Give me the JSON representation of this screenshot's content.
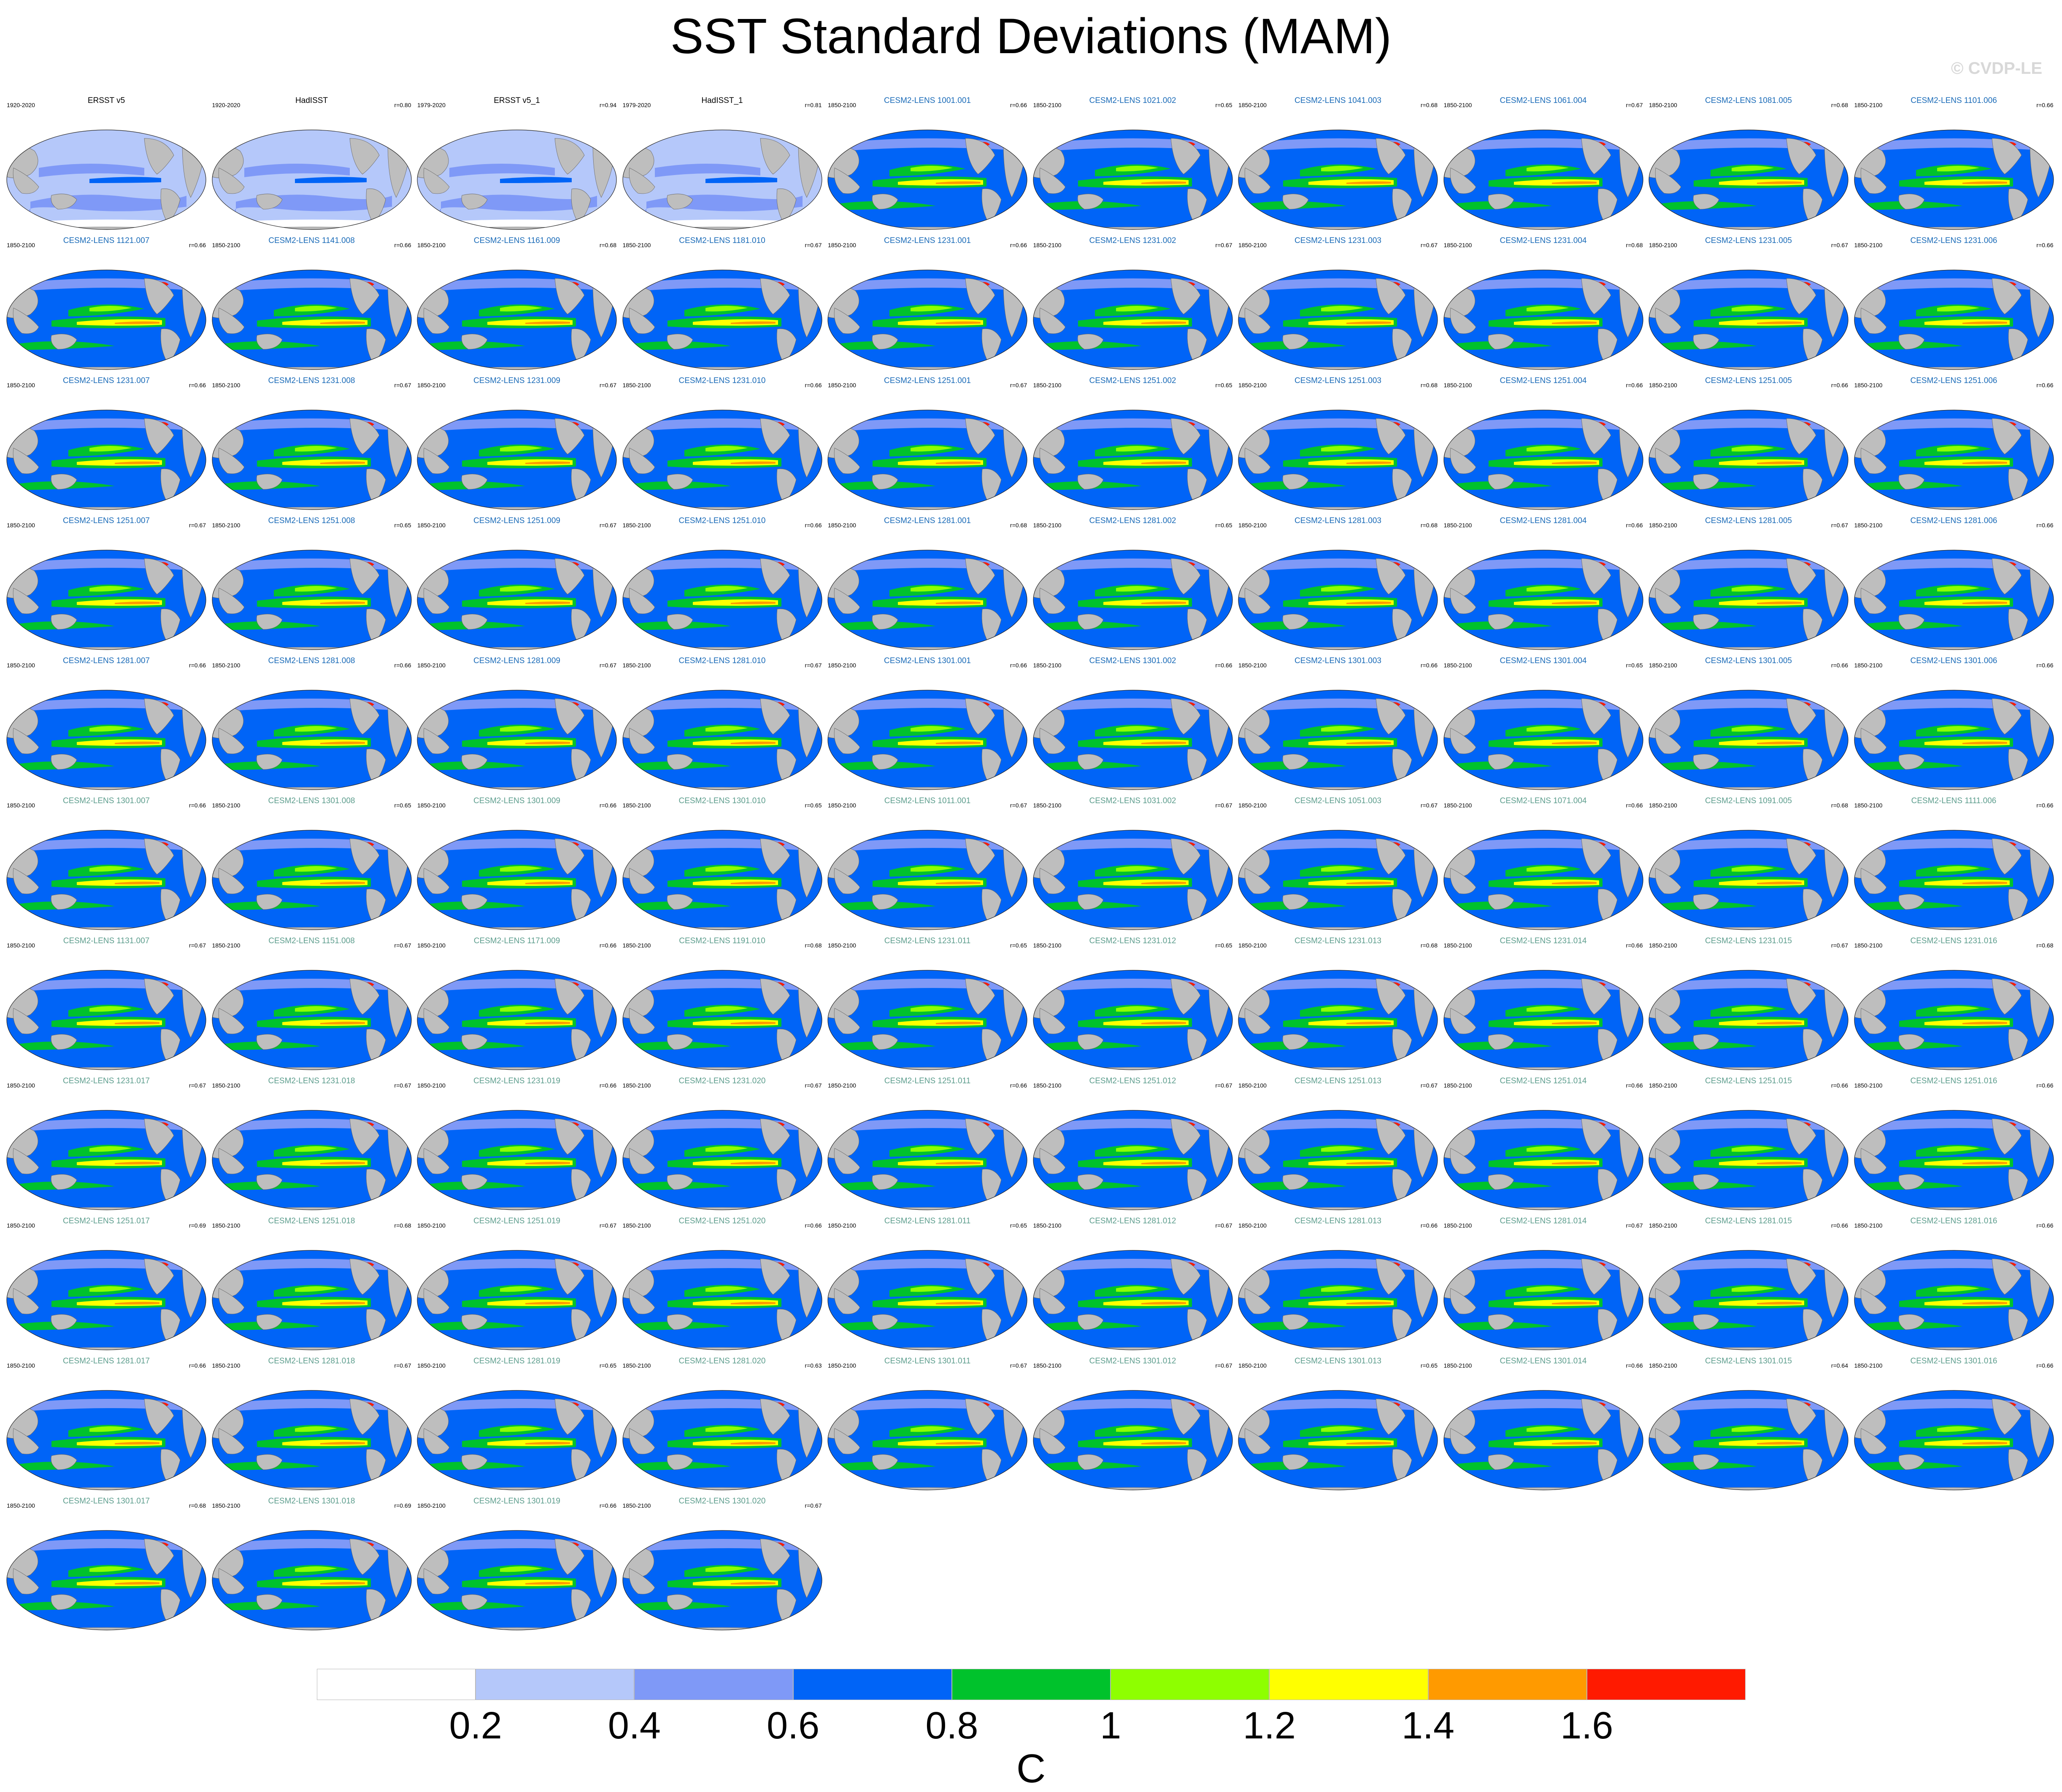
{
  "title": "SST Standard Deviations (MAM)",
  "copyright": "© CVDP-LE",
  "colors": {
    "cmip_member_title": "#1a6bb8",
    "smbb_member_title": "#5e9e8e",
    "obs_title": "#000000",
    "land": "#bebebe"
  },
  "chart_data": {
    "type": "heatmap",
    "variable": "SST standard deviation",
    "season": "MAM",
    "units": "C",
    "contour_levels": [
      0.2,
      0.4,
      0.6,
      0.8,
      1,
      1.2,
      1.4,
      1.6
    ],
    "colorbar_colors": [
      "#ffffff",
      "#b5c8fa",
      "#7f99f7",
      "#0064f7",
      "#00c22c",
      "#8eff00",
      "#ffff00",
      "#ff9a00",
      "#ff1a00"
    ],
    "colorbar_labels": [
      "0.2",
      "0.4",
      "0.6",
      "0.8",
      "1",
      "1.2",
      "1.4",
      "1.6"
    ],
    "units_label": "C",
    "observations": [
      {
        "name": "ERSST v5",
        "years": "1920-2020",
        "r": ""
      },
      {
        "name": "HadISST",
        "years": "1920-2020",
        "r": "r=0.80"
      },
      {
        "name": "ERSST v5_1",
        "years": "1979-2020",
        "r": "r=0.94"
      },
      {
        "name": "HadISST_1",
        "years": "1979-2020",
        "r": "r=0.81"
      }
    ],
    "members": [
      {
        "name": "CESM2-LENS 1001.001",
        "years": "1850-2100",
        "r": "r=0.66"
      },
      {
        "name": "CESM2-LENS 1021.002",
        "years": "1850-2100",
        "r": "r=0.65"
      },
      {
        "name": "CESM2-LENS 1041.003",
        "years": "1850-2100",
        "r": "r=0.68"
      },
      {
        "name": "CESM2-LENS 1061.004",
        "years": "1850-2100",
        "r": "r=0.67"
      },
      {
        "name": "CESM2-LENS 1081.005",
        "years": "1850-2100",
        "r": "r=0.68"
      },
      {
        "name": "CESM2-LENS 1101.006",
        "years": "1850-2100",
        "r": "r=0.66"
      },
      {
        "name": "CESM2-LENS 1121.007",
        "years": "1850-2100",
        "r": "r=0.66"
      },
      {
        "name": "CESM2-LENS 1141.008",
        "years": "1850-2100",
        "r": "r=0.66"
      },
      {
        "name": "CESM2-LENS 1161.009",
        "years": "1850-2100",
        "r": "r=0.68"
      },
      {
        "name": "CESM2-LENS 1181.010",
        "years": "1850-2100",
        "r": "r=0.67"
      },
      {
        "name": "CESM2-LENS 1231.001",
        "years": "1850-2100",
        "r": "r=0.66"
      },
      {
        "name": "CESM2-LENS 1231.002",
        "years": "1850-2100",
        "r": "r=0.67"
      },
      {
        "name": "CESM2-LENS 1231.003",
        "years": "1850-2100",
        "r": "r=0.67"
      },
      {
        "name": "CESM2-LENS 1231.004",
        "years": "1850-2100",
        "r": "r=0.68"
      },
      {
        "name": "CESM2-LENS 1231.005",
        "years": "1850-2100",
        "r": "r=0.67"
      },
      {
        "name": "CESM2-LENS 1231.006",
        "years": "1850-2100",
        "r": "r=0.66"
      },
      {
        "name": "CESM2-LENS 1231.007",
        "years": "1850-2100",
        "r": "r=0.66"
      },
      {
        "name": "CESM2-LENS 1231.008",
        "years": "1850-2100",
        "r": "r=0.67"
      },
      {
        "name": "CESM2-LENS 1231.009",
        "years": "1850-2100",
        "r": "r=0.67"
      },
      {
        "name": "CESM2-LENS 1231.010",
        "years": "1850-2100",
        "r": "r=0.66"
      },
      {
        "name": "CESM2-LENS 1251.001",
        "years": "1850-2100",
        "r": "r=0.67"
      },
      {
        "name": "CESM2-LENS 1251.002",
        "years": "1850-2100",
        "r": "r=0.65"
      },
      {
        "name": "CESM2-LENS 1251.003",
        "years": "1850-2100",
        "r": "r=0.68"
      },
      {
        "name": "CESM2-LENS 1251.004",
        "years": "1850-2100",
        "r": "r=0.66"
      },
      {
        "name": "CESM2-LENS 1251.005",
        "years": "1850-2100",
        "r": "r=0.66"
      },
      {
        "name": "CESM2-LENS 1251.006",
        "years": "1850-2100",
        "r": "r=0.66"
      },
      {
        "name": "CESM2-LENS 1251.007",
        "years": "1850-2100",
        "r": "r=0.67"
      },
      {
        "name": "CESM2-LENS 1251.008",
        "years": "1850-2100",
        "r": "r=0.65"
      },
      {
        "name": "CESM2-LENS 1251.009",
        "years": "1850-2100",
        "r": "r=0.67"
      },
      {
        "name": "CESM2-LENS 1251.010",
        "years": "1850-2100",
        "r": "r=0.66"
      },
      {
        "name": "CESM2-LENS 1281.001",
        "years": "1850-2100",
        "r": "r=0.68"
      },
      {
        "name": "CESM2-LENS 1281.002",
        "years": "1850-2100",
        "r": "r=0.65"
      },
      {
        "name": "CESM2-LENS 1281.003",
        "years": "1850-2100",
        "r": "r=0.68"
      },
      {
        "name": "CESM2-LENS 1281.004",
        "years": "1850-2100",
        "r": "r=0.66"
      },
      {
        "name": "CESM2-LENS 1281.005",
        "years": "1850-2100",
        "r": "r=0.67"
      },
      {
        "name": "CESM2-LENS 1281.006",
        "years": "1850-2100",
        "r": "r=0.66"
      },
      {
        "name": "CESM2-LENS 1281.007",
        "years": "1850-2100",
        "r": "r=0.66"
      },
      {
        "name": "CESM2-LENS 1281.008",
        "years": "1850-2100",
        "r": "r=0.66"
      },
      {
        "name": "CESM2-LENS 1281.009",
        "years": "1850-2100",
        "r": "r=0.67"
      },
      {
        "name": "CESM2-LENS 1281.010",
        "years": "1850-2100",
        "r": "r=0.67"
      },
      {
        "name": "CESM2-LENS 1301.001",
        "years": "1850-2100",
        "r": "r=0.66"
      },
      {
        "name": "CESM2-LENS 1301.002",
        "years": "1850-2100",
        "r": "r=0.66"
      },
      {
        "name": "CESM2-LENS 1301.003",
        "years": "1850-2100",
        "r": "r=0.66"
      },
      {
        "name": "CESM2-LENS 1301.004",
        "years": "1850-2100",
        "r": "r=0.65"
      },
      {
        "name": "CESM2-LENS 1301.005",
        "years": "1850-2100",
        "r": "r=0.66"
      },
      {
        "name": "CESM2-LENS 1301.006",
        "years": "1850-2100",
        "r": "r=0.66"
      },
      {
        "name": "CESM2-LENS 1301.007",
        "years": "1850-2100",
        "r": "r=0.66"
      },
      {
        "name": "CESM2-LENS 1301.008",
        "years": "1850-2100",
        "r": "r=0.65"
      },
      {
        "name": "CESM2-LENS 1301.009",
        "years": "1850-2100",
        "r": "r=0.66"
      },
      {
        "name": "CESM2-LENS 1301.010",
        "years": "1850-2100",
        "r": "r=0.65"
      },
      {
        "name": "CESM2-LENS 1011.001",
        "years": "1850-2100",
        "r": "r=0.67"
      },
      {
        "name": "CESM2-LENS 1031.002",
        "years": "1850-2100",
        "r": "r=0.67"
      },
      {
        "name": "CESM2-LENS 1051.003",
        "years": "1850-2100",
        "r": "r=0.67"
      },
      {
        "name": "CESM2-LENS 1071.004",
        "years": "1850-2100",
        "r": "r=0.66"
      },
      {
        "name": "CESM2-LENS 1091.005",
        "years": "1850-2100",
        "r": "r=0.68"
      },
      {
        "name": "CESM2-LENS 1111.006",
        "years": "1850-2100",
        "r": "r=0.66"
      },
      {
        "name": "CESM2-LENS 1131.007",
        "years": "1850-2100",
        "r": "r=0.67"
      },
      {
        "name": "CESM2-LENS 1151.008",
        "years": "1850-2100",
        "r": "r=0.67"
      },
      {
        "name": "CESM2-LENS 1171.009",
        "years": "1850-2100",
        "r": "r=0.66"
      },
      {
        "name": "CESM2-LENS 1191.010",
        "years": "1850-2100",
        "r": "r=0.68"
      },
      {
        "name": "CESM2-LENS 1231.011",
        "years": "1850-2100",
        "r": "r=0.65"
      },
      {
        "name": "CESM2-LENS 1231.012",
        "years": "1850-2100",
        "r": "r=0.65"
      },
      {
        "name": "CESM2-LENS 1231.013",
        "years": "1850-2100",
        "r": "r=0.68"
      },
      {
        "name": "CESM2-LENS 1231.014",
        "years": "1850-2100",
        "r": "r=0.66"
      },
      {
        "name": "CESM2-LENS 1231.015",
        "years": "1850-2100",
        "r": "r=0.67"
      },
      {
        "name": "CESM2-LENS 1231.016",
        "years": "1850-2100",
        "r": "r=0.68"
      },
      {
        "name": "CESM2-LENS 1231.017",
        "years": "1850-2100",
        "r": "r=0.67"
      },
      {
        "name": "CESM2-LENS 1231.018",
        "years": "1850-2100",
        "r": "r=0.67"
      },
      {
        "name": "CESM2-LENS 1231.019",
        "years": "1850-2100",
        "r": "r=0.66"
      },
      {
        "name": "CESM2-LENS 1231.020",
        "years": "1850-2100",
        "r": "r=0.67"
      },
      {
        "name": "CESM2-LENS 1251.011",
        "years": "1850-2100",
        "r": "r=0.66"
      },
      {
        "name": "CESM2-LENS 1251.012",
        "years": "1850-2100",
        "r": "r=0.67"
      },
      {
        "name": "CESM2-LENS 1251.013",
        "years": "1850-2100",
        "r": "r=0.67"
      },
      {
        "name": "CESM2-LENS 1251.014",
        "years": "1850-2100",
        "r": "r=0.66"
      },
      {
        "name": "CESM2-LENS 1251.015",
        "years": "1850-2100",
        "r": "r=0.66"
      },
      {
        "name": "CESM2-LENS 1251.016",
        "years": "1850-2100",
        "r": "r=0.66"
      },
      {
        "name": "CESM2-LENS 1251.017",
        "years": "1850-2100",
        "r": "r=0.69"
      },
      {
        "name": "CESM2-LENS 1251.018",
        "years": "1850-2100",
        "r": "r=0.68"
      },
      {
        "name": "CESM2-LENS 1251.019",
        "years": "1850-2100",
        "r": "r=0.67"
      },
      {
        "name": "CESM2-LENS 1251.020",
        "years": "1850-2100",
        "r": "r=0.66"
      },
      {
        "name": "CESM2-LENS 1281.011",
        "years": "1850-2100",
        "r": "r=0.65"
      },
      {
        "name": "CESM2-LENS 1281.012",
        "years": "1850-2100",
        "r": "r=0.67"
      },
      {
        "name": "CESM2-LENS 1281.013",
        "years": "1850-2100",
        "r": "r=0.66"
      },
      {
        "name": "CESM2-LENS 1281.014",
        "years": "1850-2100",
        "r": "r=0.67"
      },
      {
        "name": "CESM2-LENS 1281.015",
        "years": "1850-2100",
        "r": "r=0.66"
      },
      {
        "name": "CESM2-LENS 1281.016",
        "years": "1850-2100",
        "r": "r=0.66"
      },
      {
        "name": "CESM2-LENS 1281.017",
        "years": "1850-2100",
        "r": "r=0.66"
      },
      {
        "name": "CESM2-LENS 1281.018",
        "years": "1850-2100",
        "r": "r=0.67"
      },
      {
        "name": "CESM2-LENS 1281.019",
        "years": "1850-2100",
        "r": "r=0.65"
      },
      {
        "name": "CESM2-LENS 1281.020",
        "years": "1850-2100",
        "r": "r=0.63"
      },
      {
        "name": "CESM2-LENS 1301.011",
        "years": "1850-2100",
        "r": "r=0.67"
      },
      {
        "name": "CESM2-LENS 1301.012",
        "years": "1850-2100",
        "r": "r=0.67"
      },
      {
        "name": "CESM2-LENS 1301.013",
        "years": "1850-2100",
        "r": "r=0.65"
      },
      {
        "name": "CESM2-LENS 1301.014",
        "years": "1850-2100",
        "r": "r=0.66"
      },
      {
        "name": "CESM2-LENS 1301.015",
        "years": "1850-2100",
        "r": "r=0.64"
      },
      {
        "name": "CESM2-LENS 1301.016",
        "years": "1850-2100",
        "r": "r=0.66"
      },
      {
        "name": "CESM2-LENS 1301.017",
        "years": "1850-2100",
        "r": "r=0.68"
      },
      {
        "name": "CESM2-LENS 1301.018",
        "years": "1850-2100",
        "r": "r=0.69"
      },
      {
        "name": "CESM2-LENS 1301.019",
        "years": "1850-2100",
        "r": "r=0.66"
      },
      {
        "name": "CESM2-LENS 1301.020",
        "years": "1850-2100",
        "r": "r=0.67"
      }
    ]
  }
}
